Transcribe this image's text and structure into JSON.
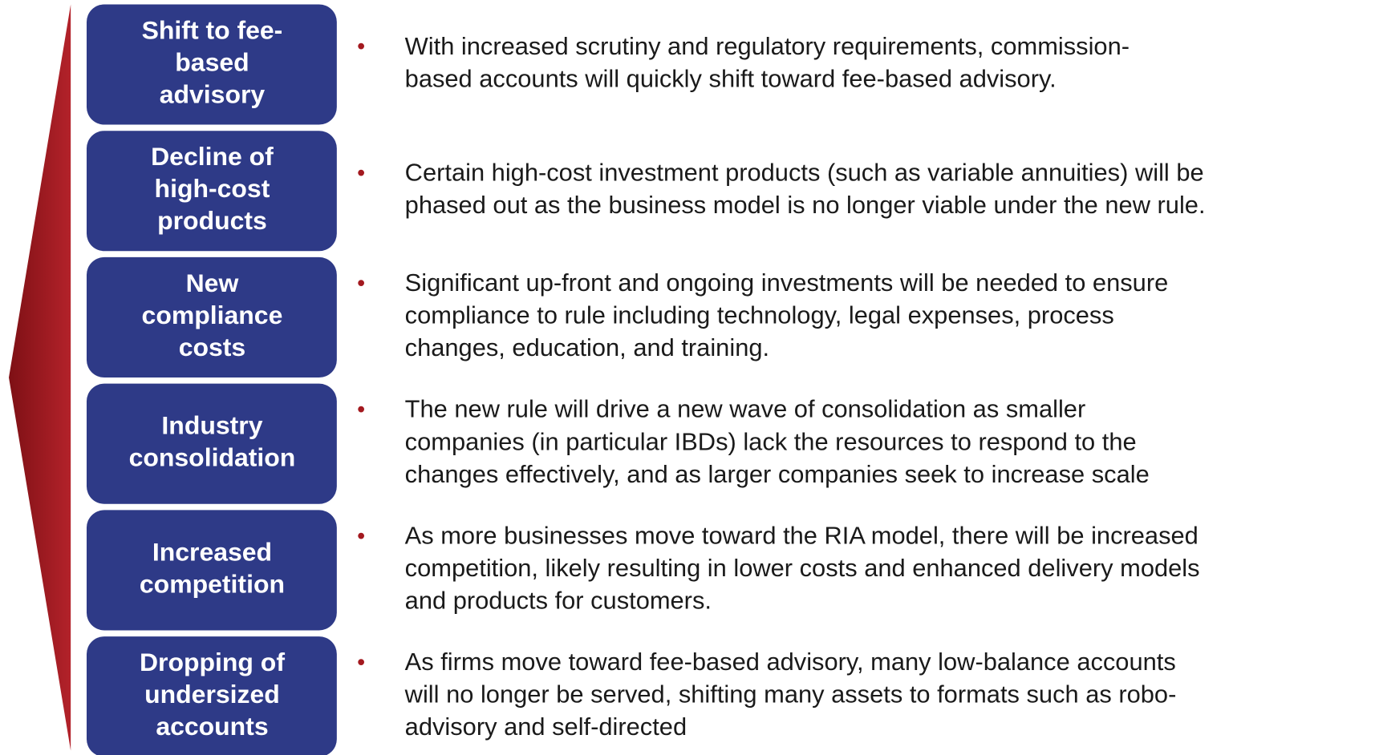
{
  "items": [
    {
      "label": [
        "Shift to fee-",
        "based",
        "advisory"
      ],
      "text": [
        "With increased scrutiny and regulatory requirements, commission-",
        "based accounts will quickly shift toward fee-based advisory."
      ]
    },
    {
      "label": [
        "Decline of",
        "high-cost",
        "products"
      ],
      "text": [
        "Certain high-cost investment products (such as variable annuities) will be",
        "phased out as the business model is no longer viable under the new rule."
      ]
    },
    {
      "label": [
        "New",
        "compliance",
        "costs"
      ],
      "text": [
        "Significant up-front and ongoing investments will be needed to ensure",
        "compliance to rule including technology, legal expenses, process",
        "changes, education, and training."
      ]
    },
    {
      "label": [
        "Industry",
        "consolidation"
      ],
      "text": [
        "The new rule will drive a new wave of consolidation as smaller",
        "companies (in particular IBDs) lack the resources to respond to the",
        "changes effectively, and as larger companies seek to increase scale"
      ]
    },
    {
      "label": [
        "Increased",
        "competition"
      ],
      "text": [
        "As more businesses move toward the RIA model, there will be increased",
        "competition, likely resulting in lower costs and enhanced delivery models",
        "and products for customers."
      ]
    },
    {
      "label": [
        "Dropping of",
        "undersized",
        "accounts"
      ],
      "text": [
        "As firms move toward fee-based advisory, many low-balance accounts",
        "will no longer be served, shifting many assets to formats such as robo-",
        "advisory and self-directed"
      ]
    }
  ]
}
